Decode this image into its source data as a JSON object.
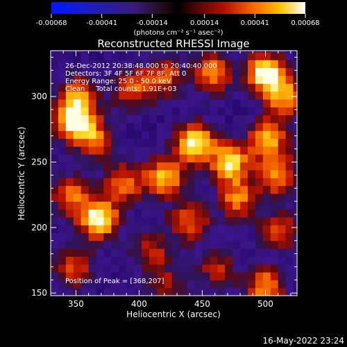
{
  "chart_data": {
    "type": "heatmap",
    "title": "Reconstructed RHESSI Image",
    "xlabel": "Heliocentric X (arcsec)",
    "ylabel": "Heliocentric Y (arcsec)",
    "xlim": [
      330,
      525
    ],
    "ylim": [
      148,
      335
    ],
    "x_ticks": [
      "350",
      "400",
      "450",
      "500"
    ],
    "y_ticks": [
      "150",
      "200",
      "250",
      "300"
    ],
    "colorbar": {
      "unit_label": "(photons cm⁻² s⁻¹ asec⁻²)",
      "ticks": [
        "-0.00068",
        "-0.00041",
        "-0.00014",
        "0.00014",
        "0.00041",
        "0.00068"
      ],
      "range": [
        -0.00068,
        0.00068
      ]
    },
    "annotations": [
      "26-Dec-2012 20:38:48.000 to 20:40:40.000",
      "Detectors: 3F 4F 5F 6F 7F 8F, Att 0",
      "Energy Range: 25.0 - 50.0 keV",
      "Clean     Total counts: 1.91E+03"
    ],
    "peak_label": "Position of Peak = [368,207]",
    "peak": [
      368,
      207
    ],
    "sources": [
      {
        "x": 500,
        "y": 318,
        "v": 1.0
      },
      {
        "x": 516,
        "y": 300,
        "v": 0.7
      },
      {
        "x": 348,
        "y": 282,
        "v": 0.85
      },
      {
        "x": 352,
        "y": 300,
        "v": 0.65
      },
      {
        "x": 395,
        "y": 305,
        "v": 0.55
      },
      {
        "x": 444,
        "y": 265,
        "v": 0.95
      },
      {
        "x": 458,
        "y": 318,
        "v": 0.7
      },
      {
        "x": 420,
        "y": 315,
        "v": 0.55
      },
      {
        "x": 365,
        "y": 268,
        "v": 0.6
      },
      {
        "x": 502,
        "y": 268,
        "v": 0.75
      },
      {
        "x": 472,
        "y": 250,
        "v": 0.85
      },
      {
        "x": 420,
        "y": 238,
        "v": 0.8
      },
      {
        "x": 510,
        "y": 240,
        "v": 0.7
      },
      {
        "x": 368,
        "y": 207,
        "v": 1.0
      },
      {
        "x": 345,
        "y": 225,
        "v": 0.6
      },
      {
        "x": 388,
        "y": 235,
        "v": 0.6
      },
      {
        "x": 440,
        "y": 205,
        "v": 0.6
      },
      {
        "x": 478,
        "y": 222,
        "v": 0.65
      },
      {
        "x": 512,
        "y": 198,
        "v": 0.55
      },
      {
        "x": 410,
        "y": 182,
        "v": 0.45
      },
      {
        "x": 348,
        "y": 170,
        "v": 0.55
      },
      {
        "x": 462,
        "y": 168,
        "v": 0.45
      },
      {
        "x": 500,
        "y": 155,
        "v": 0.7
      },
      {
        "x": 422,
        "y": 155,
        "v": 0.4
      }
    ]
  },
  "footer": {
    "timestamp": "16-May-2022 23:24"
  }
}
